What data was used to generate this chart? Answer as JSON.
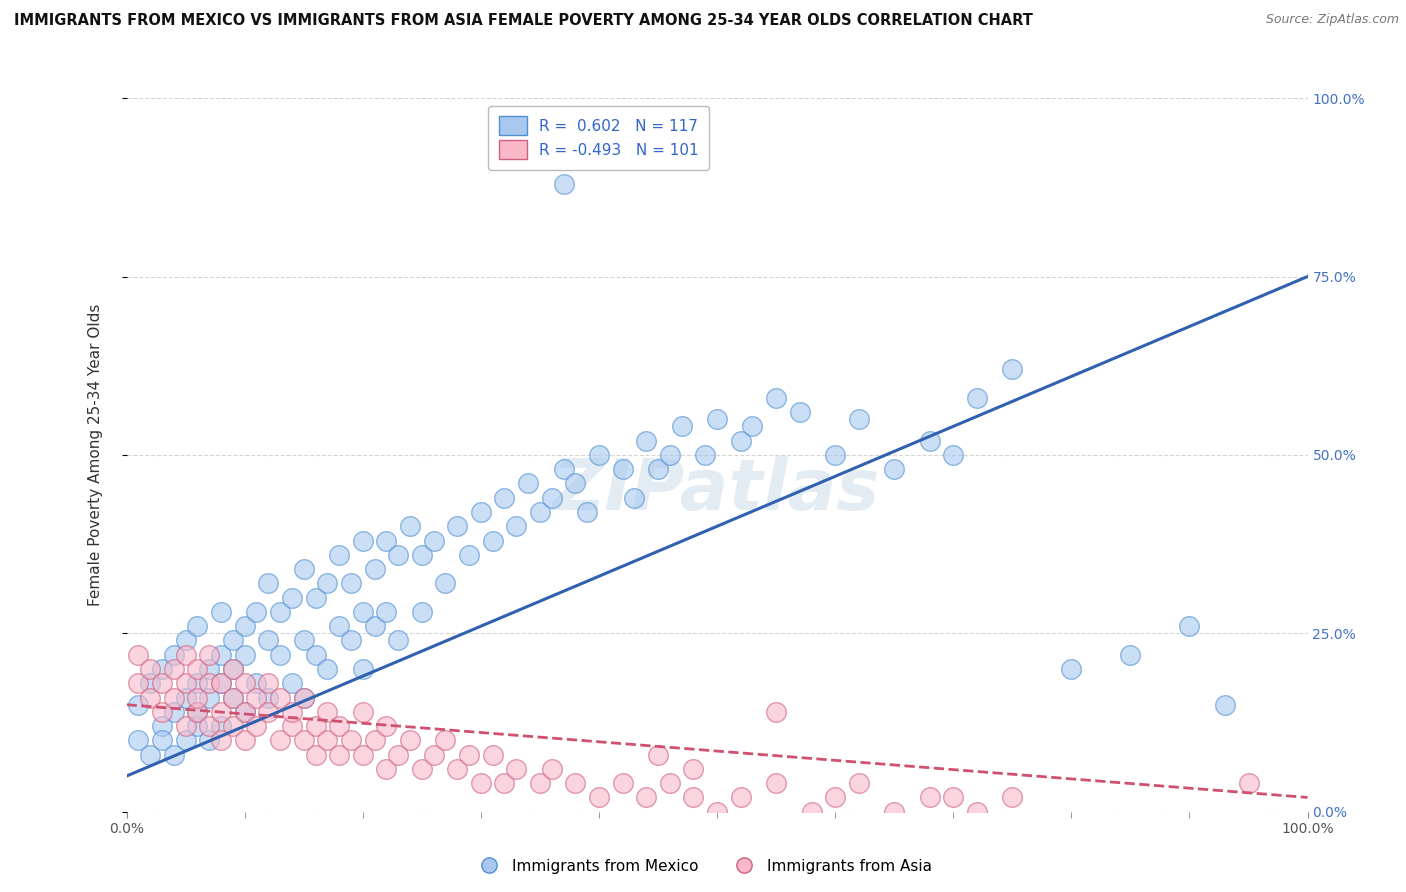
{
  "title": "IMMIGRANTS FROM MEXICO VS IMMIGRANTS FROM ASIA FEMALE POVERTY AMONG 25-34 YEAR OLDS CORRELATION CHART",
  "source": "Source: ZipAtlas.com",
  "ylabel": "Female Poverty Among 25-34 Year Olds",
  "legend_blue_label": "Immigrants from Mexico",
  "legend_pink_label": "Immigrants from Asia",
  "blue_R": 0.602,
  "blue_N": 117,
  "pink_R": -0.493,
  "pink_N": 101,
  "blue_fill_color": "#a8c8f0",
  "pink_fill_color": "#f8b8c8",
  "blue_edge_color": "#5090d0",
  "pink_edge_color": "#d06080",
  "blue_line_color": "#3060b0",
  "pink_line_color": "#d05070",
  "background_color": "#ffffff",
  "watermark": "ZIPatlas",
  "xlim": [
    0,
    100
  ],
  "ylim": [
    0,
    100
  ],
  "blue_line_y_start": 5,
  "blue_line_y_end": 75,
  "pink_line_y_start": 15,
  "pink_line_y_end": 2,
  "blue_scatter_x": [
    1,
    1,
    2,
    2,
    3,
    3,
    3,
    4,
    4,
    4,
    5,
    5,
    5,
    6,
    6,
    6,
    6,
    7,
    7,
    7,
    8,
    8,
    8,
    8,
    9,
    9,
    9,
    10,
    10,
    10,
    11,
    11,
    12,
    12,
    12,
    13,
    13,
    14,
    14,
    15,
    15,
    15,
    16,
    16,
    17,
    17,
    18,
    18,
    19,
    19,
    20,
    20,
    20,
    21,
    21,
    22,
    22,
    23,
    23,
    24,
    25,
    25,
    26,
    27,
    28,
    29,
    30,
    31,
    32,
    33,
    34,
    35,
    36,
    37,
    38,
    39,
    40,
    42,
    43,
    44,
    45,
    46,
    47,
    49,
    50,
    52,
    53,
    55,
    57,
    60,
    62,
    65,
    68,
    70,
    72,
    75,
    80,
    85,
    90,
    93
  ],
  "blue_scatter_y": [
    10,
    15,
    8,
    18,
    12,
    20,
    10,
    14,
    22,
    8,
    16,
    24,
    10,
    18,
    12,
    26,
    14,
    20,
    16,
    10,
    22,
    18,
    28,
    12,
    24,
    16,
    20,
    26,
    14,
    22,
    28,
    18,
    24,
    32,
    16,
    28,
    22,
    30,
    18,
    34,
    24,
    16,
    30,
    22,
    32,
    20,
    36,
    26,
    32,
    24,
    38,
    28,
    20,
    34,
    26,
    38,
    28,
    36,
    24,
    40,
    36,
    28,
    38,
    32,
    40,
    36,
    42,
    38,
    44,
    40,
    46,
    42,
    44,
    48,
    46,
    42,
    50,
    48,
    44,
    52,
    48,
    50,
    54,
    50,
    55,
    52,
    54,
    58,
    56,
    50,
    55,
    48,
    52,
    50,
    58,
    62,
    20,
    22,
    26,
    15
  ],
  "blue_outlier_x": [
    37
  ],
  "blue_outlier_y": [
    88
  ],
  "pink_scatter_x": [
    1,
    1,
    2,
    2,
    3,
    3,
    4,
    4,
    5,
    5,
    5,
    6,
    6,
    6,
    7,
    7,
    7,
    8,
    8,
    8,
    9,
    9,
    9,
    10,
    10,
    10,
    11,
    11,
    12,
    12,
    13,
    13,
    14,
    14,
    15,
    15,
    16,
    16,
    17,
    17,
    18,
    18,
    19,
    20,
    20,
    21,
    22,
    22,
    23,
    24,
    25,
    26,
    27,
    28,
    29,
    30,
    31,
    32,
    33,
    35,
    36,
    38,
    40,
    42,
    44,
    46,
    48,
    50,
    52,
    55,
    58,
    60,
    62,
    65,
    68,
    70,
    72,
    75,
    45,
    48,
    55
  ],
  "pink_scatter_y": [
    18,
    22,
    16,
    20,
    18,
    14,
    16,
    20,
    12,
    18,
    22,
    14,
    20,
    16,
    12,
    18,
    22,
    14,
    18,
    10,
    16,
    20,
    12,
    14,
    18,
    10,
    16,
    12,
    14,
    18,
    10,
    16,
    12,
    14,
    10,
    16,
    12,
    8,
    14,
    10,
    12,
    8,
    10,
    14,
    8,
    10,
    12,
    6,
    8,
    10,
    6,
    8,
    10,
    6,
    8,
    4,
    8,
    4,
    6,
    4,
    6,
    4,
    2,
    4,
    2,
    4,
    2,
    0,
    2,
    4,
    0,
    2,
    4,
    0,
    2,
    2,
    0,
    2,
    8,
    6,
    14
  ],
  "pink_outlier_x": [
    95
  ],
  "pink_outlier_y": [
    4
  ]
}
